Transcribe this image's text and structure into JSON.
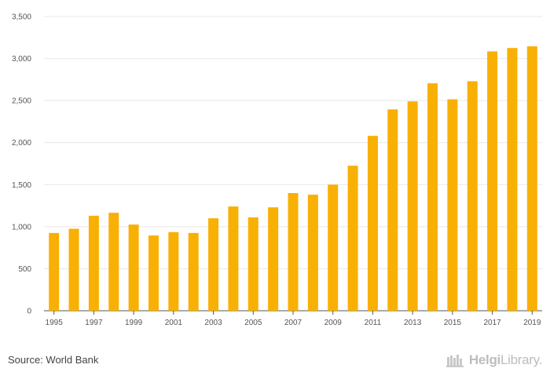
{
  "chart_data": {
    "type": "bar",
    "categories": [
      "1995",
      "1996",
      "1997",
      "1998",
      "1999",
      "2000",
      "2001",
      "2002",
      "2003",
      "2004",
      "2005",
      "2006",
      "2007",
      "2008",
      "2009",
      "2010",
      "2011",
      "2012",
      "2013",
      "2014",
      "2015",
      "2016",
      "2017",
      "2018",
      "2019"
    ],
    "x_tick_labels": [
      "1995",
      "1997",
      "1999",
      "2001",
      "2003",
      "2005",
      "2007",
      "2009",
      "2011",
      "2013",
      "2015",
      "2017",
      "2019"
    ],
    "y_tick_labels": [
      "0",
      "500",
      "1,000",
      "1,500",
      "2,000",
      "2,500",
      "3,000",
      "3,500"
    ],
    "y_ticks": [
      0,
      500,
      1000,
      1500,
      2000,
      2500,
      3000,
      3500
    ],
    "values": [
      925,
      975,
      1130,
      1165,
      1025,
      895,
      935,
      925,
      1100,
      1240,
      1110,
      1230,
      1400,
      1380,
      1500,
      1725,
      2080,
      2395,
      2490,
      2705,
      2515,
      2730,
      3085,
      3125,
      3145
    ],
    "ylim": [
      0,
      3500
    ],
    "grid": true,
    "legend": "none",
    "bar_color": "#F9B004",
    "grid_color": "#E8E8E8",
    "axis_color": "#555555"
  },
  "footer": {
    "source": "Source: World Bank",
    "brand_bold": "Helgi",
    "brand_rest": "Library."
  }
}
